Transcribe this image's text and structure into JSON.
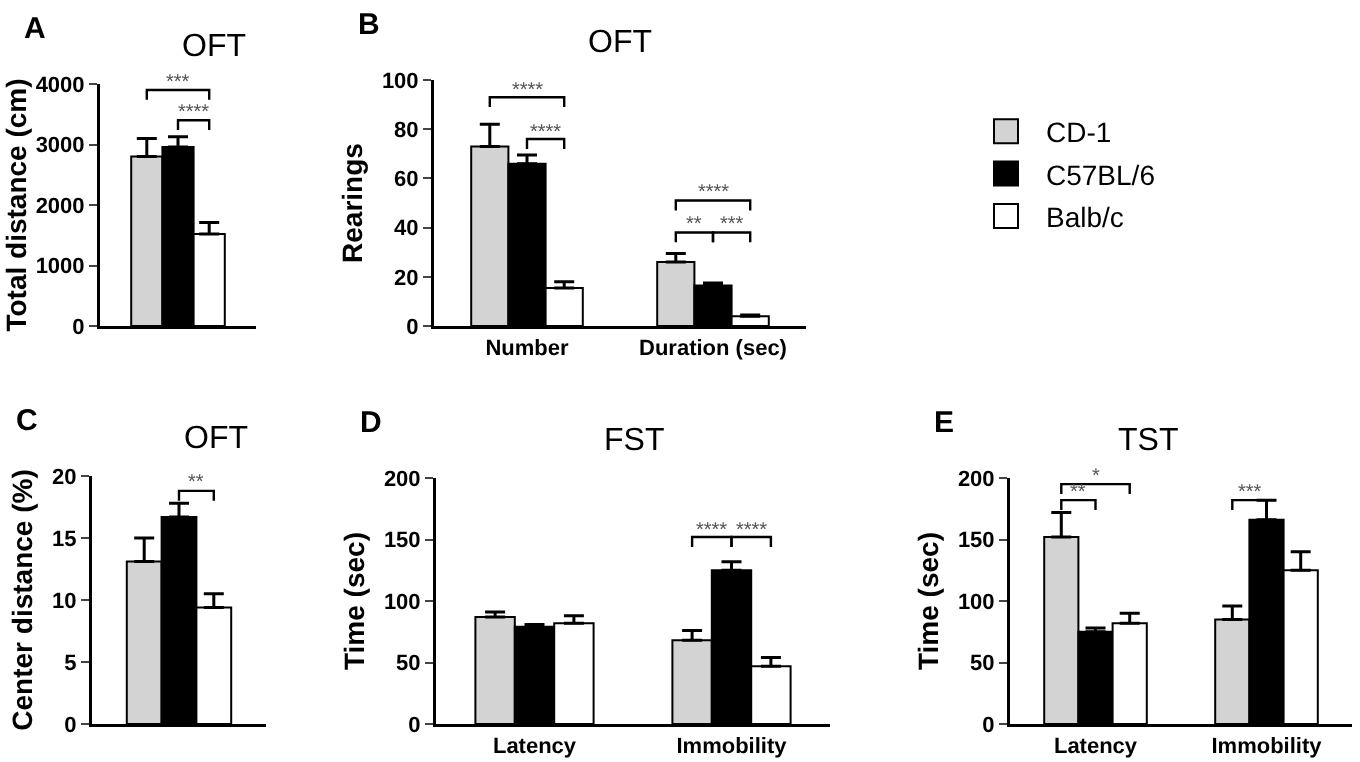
{
  "chart_data": [
    {
      "type": "bar",
      "title": "OFT",
      "ylabel": "Total distance (cm)",
      "categories": [
        null
      ],
      "ylim": [
        0,
        4000
      ],
      "yticks": [
        0,
        1000,
        2000,
        3000,
        4000
      ],
      "legend": false,
      "annotations": [
        "A",
        "***",
        "****"
      ],
      "series": [
        {
          "color": "#d3d3d3",
          "values": [
            2800
          ],
          "errors": [
            [
              2800,
              3100
            ]
          ]
        },
        {
          "color": "#000000",
          "values": [
            2960
          ],
          "errors": [
            [
              2960,
              3130
            ]
          ]
        },
        {
          "color": "#ffffff",
          "values": [
            1520
          ],
          "errors": [
            [
              1520,
              1710
            ]
          ]
        }
      ]
    },
    {
      "type": "bar",
      "title": "OFT",
      "ylabel": "Rearings",
      "categories": [
        "Number",
        "Duration (sec)"
      ],
      "ylim": [
        0,
        100
      ],
      "yticks": [
        0,
        20,
        40,
        60,
        80,
        100
      ],
      "legend": "right",
      "annotations": [
        "B",
        "****",
        "****",
        "****",
        "**",
        "***"
      ],
      "series": [
        {
          "name": "CD-1",
          "color": "#d3d3d3",
          "values": [
            73,
            26
          ],
          "errors": [
            [
              73,
              82
            ],
            [
              26,
              29.5
            ]
          ]
        },
        {
          "name": "C57BL/6",
          "color": "#000000",
          "values": [
            66,
            16.5
          ],
          "errors": [
            [
              66,
              69.5
            ],
            [
              16.5,
              17.5
            ]
          ]
        },
        {
          "name": "Balb/c",
          "color": "#ffffff",
          "values": [
            15.5,
            4
          ],
          "errors": [
            [
              15.5,
              18
            ],
            [
              4,
              4.5
            ]
          ]
        }
      ]
    },
    {
      "type": "bar",
      "title": "OFT",
      "ylabel": "Center distance (%)",
      "categories": [
        null
      ],
      "ylim": [
        0,
        20
      ],
      "yticks": [
        0,
        5,
        10,
        15,
        20
      ],
      "legend": false,
      "annotations": [
        "C",
        "**"
      ],
      "series": [
        {
          "color": "#d3d3d3",
          "values": [
            13.1
          ],
          "errors": [
            [
              13.1,
              15
            ]
          ]
        },
        {
          "color": "#000000",
          "values": [
            16.7
          ],
          "errors": [
            [
              16.7,
              17.8
            ]
          ]
        },
        {
          "color": "#ffffff",
          "values": [
            9.4
          ],
          "errors": [
            [
              9.4,
              10.5
            ]
          ]
        }
      ]
    },
    {
      "type": "bar",
      "title": "FST",
      "ylabel": "Time (sec)",
      "categories": [
        "Latency",
        "Immobility"
      ],
      "ylim": [
        0,
        200
      ],
      "yticks": [
        0,
        50,
        100,
        150,
        200
      ],
      "legend": false,
      "annotations": [
        "D",
        "****",
        "****"
      ],
      "series": [
        {
          "color": "#d3d3d3",
          "values": [
            87,
            68
          ],
          "errors": [
            [
              87,
              91
            ],
            [
              68,
              76
            ]
          ]
        },
        {
          "color": "#000000",
          "values": [
            79,
            125
          ],
          "errors": [
            [
              79,
              81
            ],
            [
              125,
              132
            ]
          ]
        },
        {
          "color": "#ffffff",
          "values": [
            82,
            47
          ],
          "errors": [
            [
              82,
              88
            ],
            [
              47,
              54
            ]
          ]
        }
      ]
    },
    {
      "type": "bar",
      "title": "TST",
      "ylabel": "Time (sec)",
      "categories": [
        "Latency",
        "Immobility"
      ],
      "ylim": [
        0,
        200
      ],
      "yticks": [
        0,
        50,
        100,
        150,
        200
      ],
      "legend": false,
      "annotations": [
        "E",
        "*",
        "**",
        "***"
      ],
      "series": [
        {
          "color": "#d3d3d3",
          "values": [
            152,
            85
          ],
          "errors": [
            [
              152,
              172
            ],
            [
              85,
              96
            ]
          ]
        },
        {
          "color": "#000000",
          "values": [
            75,
            166
          ],
          "errors": [
            [
              75,
              78
            ],
            [
              166,
              182
            ]
          ]
        },
        {
          "color": "#ffffff",
          "values": [
            82,
            125
          ],
          "errors": [
            [
              82,
              90
            ],
            [
              125,
              140
            ]
          ]
        }
      ]
    }
  ]
}
